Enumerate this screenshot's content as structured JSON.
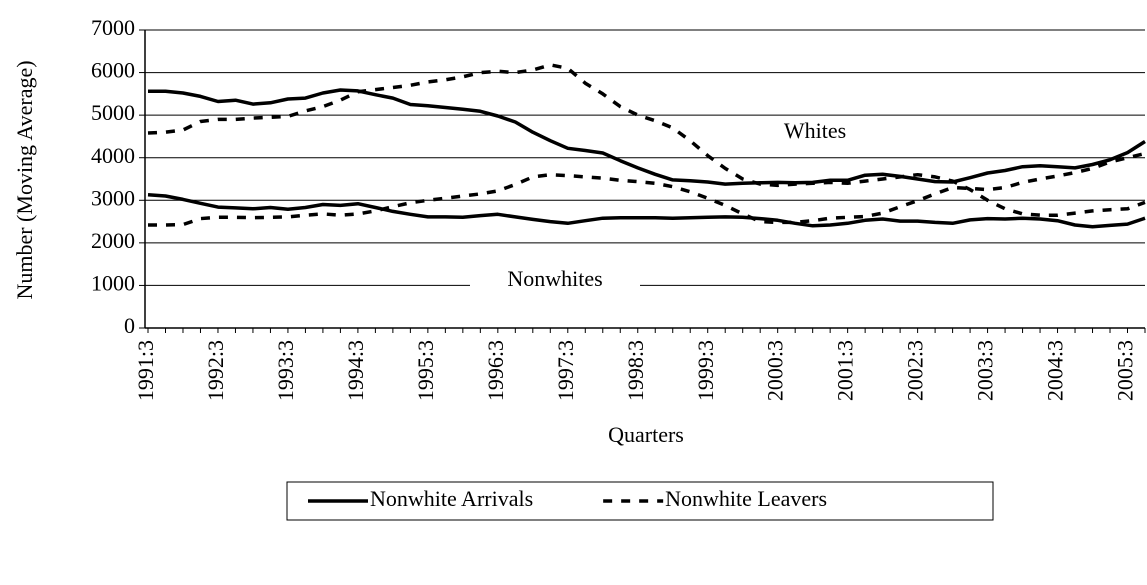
{
  "chart_data": {
    "type": "line",
    "x_label": "Quarters",
    "y_label": "Number (Moving Average)",
    "categories": [
      "1991:3",
      null,
      null,
      null,
      "1992:3",
      null,
      null,
      null,
      "1993:3",
      null,
      null,
      null,
      "1994:3",
      null,
      null,
      null,
      "1995:3",
      null,
      null,
      null,
      "1996:3",
      null,
      null,
      null,
      "1997:3",
      null,
      null,
      null,
      "1998:3",
      null,
      null,
      null,
      "1999:3",
      null,
      null,
      null,
      "2000:3",
      null,
      null,
      null,
      "2001:3",
      null,
      null,
      null,
      "2002:3",
      null,
      null,
      null,
      "2003:3",
      null,
      null,
      null,
      "2004:3",
      null,
      null,
      null,
      "2005:3",
      null
    ],
    "ylim": [
      0,
      7000
    ],
    "yticks": [
      0,
      1000,
      2000,
      3000,
      4000,
      5000,
      6000,
      7000
    ],
    "grid": true,
    "legend": "bottom",
    "annotations": [
      {
        "text": "Whites"
      },
      {
        "text": "Nonwhites"
      }
    ],
    "series": [
      {
        "name": "Nonwhite Arrivals",
        "color": "#000000",
        "line_style": "solid",
        "values": [
          3130,
          3100,
          3020,
          2930,
          2840,
          2820,
          2800,
          2830,
          2790,
          2830,
          2900,
          2880,
          2920,
          2830,
          2740,
          2670,
          2610,
          2610,
          2600,
          2640,
          2670,
          2610,
          2550,
          2500,
          2460,
          2520,
          2580,
          2590,
          2590,
          2590,
          2580,
          2590,
          2600,
          2610,
          2600,
          2570,
          2530,
          2460,
          2400,
          2420,
          2460,
          2530,
          2560,
          2510,
          2510,
          2480,
          2460,
          2540,
          2570,
          2560,
          2580,
          2560,
          2520,
          2420,
          2380,
          2410,
          2440,
          2580
        ]
      },
      {
        "name": "Nonwhite Leavers",
        "color": "#000000",
        "line_style": "dashed",
        "values": [
          2420,
          2420,
          2430,
          2570,
          2600,
          2600,
          2590,
          2600,
          2610,
          2650,
          2680,
          2650,
          2680,
          2750,
          2850,
          2940,
          3000,
          3050,
          3100,
          3150,
          3220,
          3370,
          3550,
          3600,
          3580,
          3550,
          3520,
          3470,
          3440,
          3400,
          3320,
          3200,
          3050,
          2880,
          2680,
          2500,
          2480,
          2480,
          2520,
          2580,
          2600,
          2620,
          2700,
          2850,
          2990,
          3150,
          3300,
          3280,
          3250,
          3300,
          3420,
          3500,
          3570,
          3650,
          3750,
          3900,
          4000,
          4100
        ]
      },
      {
        "color": "#000000",
        "line_style": "solid",
        "values": [
          5560,
          5560,
          5520,
          5440,
          5320,
          5350,
          5260,
          5290,
          5380,
          5400,
          5520,
          5590,
          5570,
          5480,
          5400,
          5250,
          5220,
          5180,
          5140,
          5090,
          4980,
          4840,
          4600,
          4400,
          4220,
          4170,
          4110,
          3930,
          3760,
          3610,
          3480,
          3460,
          3430,
          3380,
          3400,
          3410,
          3420,
          3410,
          3420,
          3470,
          3470,
          3590,
          3610,
          3560,
          3500,
          3440,
          3430,
          3530,
          3640,
          3700,
          3790,
          3810,
          3790,
          3760,
          3840,
          3950,
          4120,
          4380
        ]
      },
      {
        "color": "#000000",
        "line_style": "dashed",
        "values": [
          4580,
          4600,
          4650,
          4850,
          4900,
          4900,
          4930,
          4950,
          4970,
          5100,
          5200,
          5350,
          5550,
          5600,
          5650,
          5700,
          5780,
          5830,
          5900,
          6000,
          6030,
          6000,
          6060,
          6180,
          6100,
          5750,
          5500,
          5200,
          5000,
          4870,
          4700,
          4400,
          4050,
          3750,
          3500,
          3380,
          3350,
          3380,
          3400,
          3420,
          3400,
          3450,
          3500,
          3550,
          3600,
          3550,
          3450,
          3250,
          3000,
          2800,
          2680,
          2650,
          2650,
          2700,
          2750,
          2780,
          2800,
          2950
        ]
      }
    ]
  }
}
